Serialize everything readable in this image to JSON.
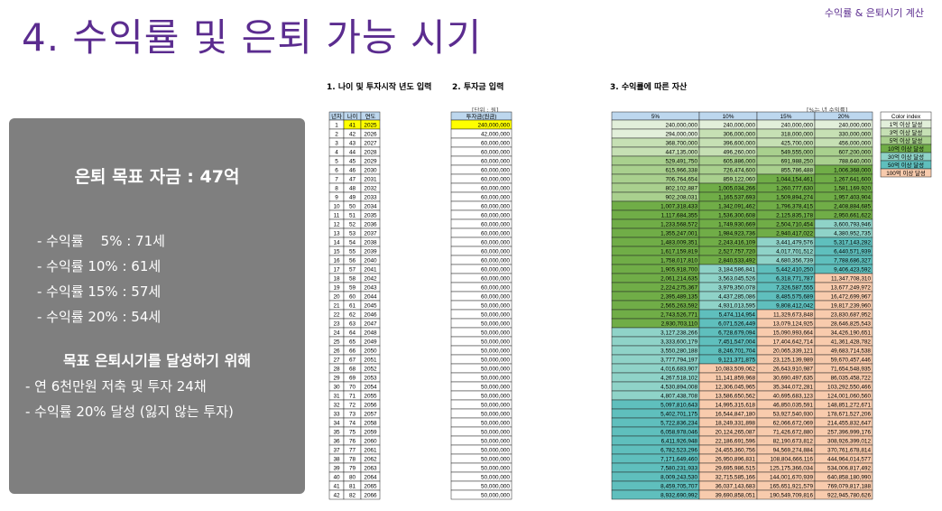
{
  "title": "4. 수익률 및 은퇴 가능 시기",
  "corner": "수익률 & 은퇴시기 계산",
  "panel": {
    "goal": "은퇴 목표 자금 : 47억",
    "rates": [
      "- 수익률    5% : 71세",
      "- 수익률 10% : 61세",
      "- 수익률 15% : 57세",
      "- 수익률 20% : 54세"
    ],
    "howto_title": "목표 은퇴시기를 달성하기 위해",
    "howto": [
      "- 연 6천만원 저축 및 투자 24채",
      "- 수익률 20% 달성 (잃지 않는 투자)"
    ]
  },
  "sections": {
    "s1": "1. 나이 및 투자시작 년도 입력",
    "s2": "2. 투자금 입력",
    "s3": "3. 수익률에 따른 자산"
  },
  "units": {
    "invest": "[단위 : 원]",
    "return": "[%는 년 수익률]"
  },
  "table1": {
    "headers": [
      "년차",
      "나이",
      "연도"
    ],
    "start_age": 41,
    "start_year": 2025,
    "rows": 42
  },
  "table2": {
    "header": "투자금(원금)",
    "values": [
      "240,000,000",
      "42,000,000",
      "60,000,000",
      "60,000,000",
      "60,000,000",
      "60,000,000",
      "60,000,000",
      "60,000,000",
      "60,000,000",
      "60,000,000",
      "60,000,000",
      "60,000,000",
      "60,000,000",
      "60,000,000",
      "60,000,000",
      "60,000,000",
      "60,000,000",
      "60,000,000",
      "60,000,000",
      "60,000,000",
      "50,000,000",
      "50,000,000",
      "50,000,000",
      "50,000,000",
      "50,000,000",
      "50,000,000",
      "50,000,000",
      "50,000,000",
      "50,000,000",
      "50,000,000",
      "50,000,000",
      "50,000,000",
      "50,000,000",
      "50,000,000",
      "50,000,000",
      "50,000,000",
      "50,000,000",
      "50,000,000",
      "50,000,000",
      "50,000,000",
      "50,000,000",
      "50,000,000"
    ]
  },
  "table3": {
    "headers": [
      "5%",
      "10%",
      "15%",
      "20%"
    ],
    "rows": [
      [
        "240,000,000",
        "240,000,000",
        "240,000,000",
        "240,000,000"
      ],
      [
        "294,000,000",
        "306,000,000",
        "318,000,000",
        "330,000,000"
      ],
      [
        "368,700,000",
        "396,600,000",
        "425,700,000",
        "456,000,000"
      ],
      [
        "447,135,000",
        "496,260,000",
        "549,555,000",
        "607,200,000"
      ],
      [
        "529,491,750",
        "605,886,000",
        "691,988,250",
        "788,640,000"
      ],
      [
        "615,966,338",
        "726,474,600",
        "855,786,488",
        "1,006,368,000"
      ],
      [
        "706,764,654",
        "859,122,060",
        "1,044,154,461",
        "1,267,641,600"
      ],
      [
        "802,102,887",
        "1,005,034,266",
        "1,260,777,630",
        "1,581,169,920"
      ],
      [
        "902,208,031",
        "1,165,537,693",
        "1,509,894,274",
        "1,957,403,904"
      ],
      [
        "1,007,318,433",
        "1,342,091,462",
        "1,796,378,415",
        "2,408,884,685"
      ],
      [
        "1,117,684,355",
        "1,536,300,608",
        "2,125,835,178",
        "2,950,661,622"
      ],
      [
        "1,233,568,572",
        "1,749,930,669",
        "2,504,710,454",
        "3,600,793,946"
      ],
      [
        "1,355,247,001",
        "1,984,923,736",
        "2,940,417,022",
        "4,380,952,735"
      ],
      [
        "1,483,009,351",
        "2,243,416,109",
        "3,441,479,576",
        "5,317,143,282"
      ],
      [
        "1,617,159,819",
        "2,527,757,720",
        "4,017,701,512",
        "6,440,571,939"
      ],
      [
        "1,758,017,810",
        "2,840,533,492",
        "4,680,356,739",
        "7,788,686,327"
      ],
      [
        "1,905,918,700",
        "3,184,586,841",
        "5,442,410,250",
        "9,406,423,592"
      ],
      [
        "2,061,214,635",
        "3,563,045,526",
        "6,318,771,787",
        "11,347,708,310"
      ],
      [
        "2,224,275,367",
        "3,979,350,078",
        "7,326,587,555",
        "13,677,249,972"
      ],
      [
        "2,395,489,135",
        "4,437,285,086",
        "8,485,575,689",
        "16,472,699,967"
      ],
      [
        "2,565,263,592",
        "4,931,013,595",
        "9,808,412,042",
        "19,817,239,960"
      ],
      [
        "2,743,526,771",
        "5,474,114,954",
        "11,329,673,848",
        "23,830,687,952"
      ],
      [
        "2,930,703,110",
        "6,071,526,449",
        "13,079,124,925",
        "28,646,825,543"
      ],
      [
        "3,127,238,266",
        "6,728,679,094",
        "15,090,993,664",
        "34,426,190,651"
      ],
      [
        "3,333,600,179",
        "7,451,547,004",
        "17,404,642,714",
        "41,361,428,782"
      ],
      [
        "3,550,280,188",
        "8,246,701,704",
        "20,065,339,121",
        "49,683,714,538"
      ],
      [
        "3,777,794,197",
        "9,121,371,875",
        "23,125,139,989",
        "59,670,457,446"
      ],
      [
        "4,016,683,907",
        "10,083,509,062",
        "26,643,910,987",
        "71,654,548,935"
      ],
      [
        "4,267,518,102",
        "11,141,859,968",
        "30,690,497,635",
        "86,035,458,722"
      ],
      [
        "4,530,894,008",
        "12,306,045,965",
        "35,344,072,281",
        "103,292,550,466"
      ],
      [
        "4,807,438,708",
        "13,586,650,562",
        "40,695,683,123",
        "124,001,060,560"
      ],
      [
        "5,097,810,643",
        "14,995,315,618",
        "46,850,035,591",
        "148,851,272,671"
      ],
      [
        "5,402,701,175",
        "16,544,847,180",
        "53,927,540,930",
        "178,671,527,206"
      ],
      [
        "5,722,836,234",
        "18,249,331,898",
        "62,066,672,069",
        "214,455,832,647"
      ],
      [
        "6,058,978,046",
        "20,124,265,087",
        "71,426,672,880",
        "257,396,999,176"
      ],
      [
        "6,411,926,948",
        "22,186,691,596",
        "82,190,673,812",
        "308,926,399,012"
      ],
      [
        "6,782,523,296",
        "24,455,360,756",
        "94,569,274,884",
        "370,761,678,814"
      ],
      [
        "7,171,649,460",
        "26,950,896,831",
        "108,804,666,116",
        "444,964,014,577"
      ],
      [
        "7,580,231,933",
        "29,695,986,515",
        "125,175,366,034",
        "534,006,817,492"
      ],
      [
        "8,009,243,530",
        "32,715,585,166",
        "144,001,670,939",
        "640,858,180,990"
      ],
      [
        "8,459,705,707",
        "36,037,143,683",
        "165,651,921,579",
        "769,079,817,188"
      ],
      [
        "8,932,690,992",
        "39,690,858,051",
        "190,549,709,816",
        "922,945,780,626"
      ]
    ]
  },
  "legend": {
    "header": "Color index",
    "items": [
      {
        "label": "1억 이상 달성",
        "color": "#e2efda"
      },
      {
        "label": "3억 이상 달성",
        "color": "#c6e0b4"
      },
      {
        "label": "5억 이상 달성",
        "color": "#a9d08e"
      },
      {
        "label": "10억 이상 달성",
        "color": "#70ad47"
      },
      {
        "label": "30억 이상 달성",
        "color": "#8fd3c8"
      },
      {
        "label": "50억 이상 달성",
        "color": "#5fbfbd"
      },
      {
        "label": "100억 이상 달성",
        "color": "#f8cbad"
      }
    ]
  },
  "colors": {
    "accent": "#5b2c8f",
    "header": "#bdd7ee",
    "highlight": "#ffff00",
    "panel": "#7f7f7f"
  }
}
